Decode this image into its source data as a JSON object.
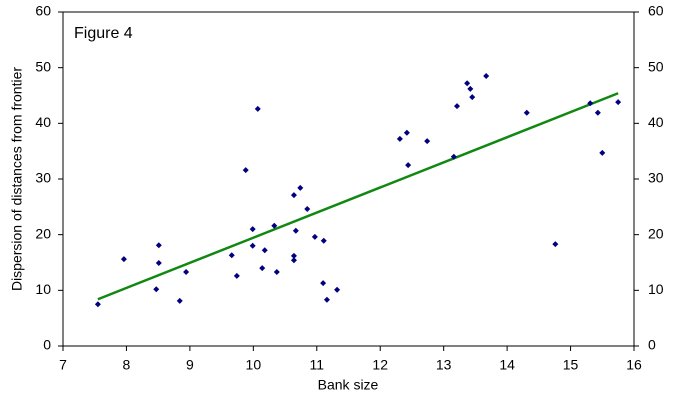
{
  "chart_data": {
    "type": "scatter",
    "annotation": "Figure 4",
    "x_label": "Bank size",
    "y_label": "Dispersion of distances from frontier",
    "xlim": [
      7,
      16
    ],
    "xticks": [
      7,
      8,
      9,
      10,
      11,
      12,
      13,
      14,
      15,
      16
    ],
    "ylim": [
      0,
      60
    ],
    "yticks": [
      0,
      10,
      20,
      30,
      40,
      50,
      60
    ],
    "y2lim": [
      0,
      60
    ],
    "y2ticks": [
      0,
      10,
      20,
      30,
      40,
      50,
      60
    ],
    "series": [
      {
        "color": "#000080",
        "x": [
          7.55,
          7.96,
          8.51,
          8.51,
          8.47,
          8.94,
          8.84,
          9.66,
          9.74,
          9.88,
          9.99,
          9.99,
          10.07,
          10.14,
          10.18,
          10.33,
          10.37,
          10.64,
          10.67,
          10.64,
          10.64,
          10.74,
          10.85,
          10.97,
          11.11,
          11.1,
          11.16,
          11.32,
          12.31,
          12.42,
          12.44,
          12.74,
          13.16,
          13.21,
          13.37,
          13.42,
          13.45,
          13.67,
          14.31,
          14.76,
          15.31,
          15.43,
          15.5,
          15.75
        ],
        "values": [
          7.5,
          15.6,
          18.1,
          14.9,
          10.2,
          13.3,
          8.1,
          16.3,
          12.6,
          31.6,
          21.0,
          18.0,
          42.6,
          14.0,
          17.2,
          21.6,
          13.3,
          27.1,
          20.7,
          16.2,
          15.4,
          28.4,
          24.6,
          19.6,
          18.9,
          11.3,
          8.3,
          10.1,
          37.2,
          38.3,
          32.5,
          36.8,
          34.0,
          43.1,
          47.2,
          46.2,
          44.7,
          48.5,
          41.9,
          18.3,
          43.6,
          41.9,
          34.7,
          43.8
        ]
      }
    ],
    "trendline": {
      "color": "#118811",
      "x": [
        7.55,
        15.75
      ],
      "values": [
        8.4,
        45.4
      ]
    }
  }
}
